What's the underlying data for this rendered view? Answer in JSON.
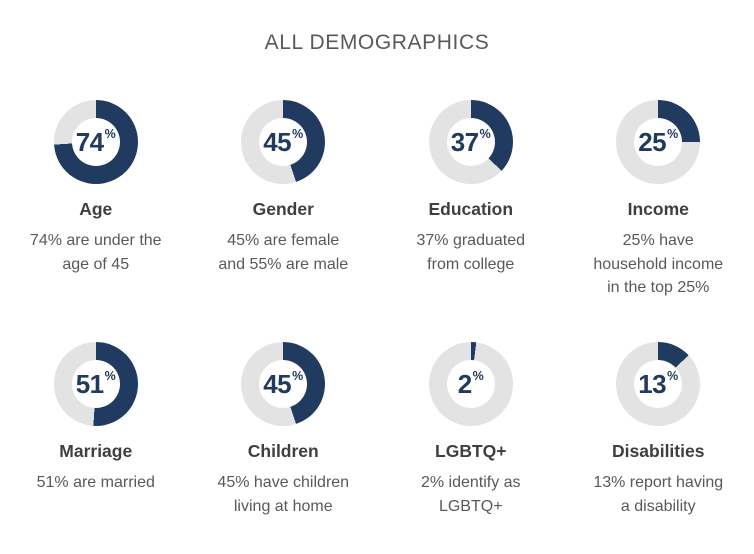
{
  "title": "ALL DEMOGRAPHICS",
  "percent_symbol": "%",
  "colors": {
    "donut_fill": "#213a60",
    "donut_track": "#e3e3e3",
    "title_text": "#595959",
    "label_text": "#3f3f3f",
    "desc_text": "#595959"
  },
  "chart_data": {
    "type": "pie",
    "subtype": "donut-grid",
    "title": "ALL DEMOGRAPHICS",
    "unit": "%",
    "legend": "none",
    "charts": [
      {
        "label": "Age",
        "value": 74,
        "remainder": 26,
        "description": "74% are under the\nage of 45"
      },
      {
        "label": "Gender",
        "value": 45,
        "remainder": 55,
        "description": "45% are female\nand 55% are male"
      },
      {
        "label": "Education",
        "value": 37,
        "remainder": 63,
        "description": "37% graduated\nfrom college"
      },
      {
        "label": "Income",
        "value": 25,
        "remainder": 75,
        "description": "25% have\nhousehold income\nin the top 25%"
      },
      {
        "label": "Marriage",
        "value": 51,
        "remainder": 49,
        "description": "51% are married"
      },
      {
        "label": "Children",
        "value": 45,
        "remainder": 55,
        "description": "45% have children\nliving at home"
      },
      {
        "label": "LGBTQ+",
        "value": 2,
        "remainder": 98,
        "description": "2% identify as\nLGBTQ+"
      },
      {
        "label": "Disabilities",
        "value": 13,
        "remainder": 87,
        "description": "13% report having\na disability"
      }
    ]
  }
}
